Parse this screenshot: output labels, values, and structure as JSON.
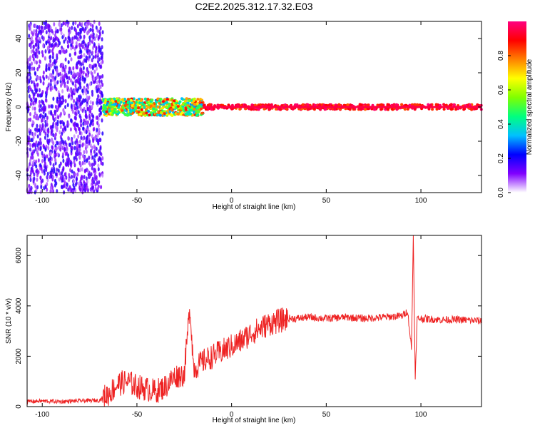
{
  "title": "C2E2.2025.312.17.32.E03",
  "chart_data": [
    {
      "type": "heatmap",
      "xlabel": "Height of straight line (km)",
      "ylabel": "Frequency (Hz)",
      "xlim": [
        -108,
        132
      ],
      "ylim": [
        -50,
        50
      ],
      "xticks": [
        -100,
        -50,
        0,
        50,
        100
      ],
      "yticks": [
        -40,
        -20,
        0,
        20,
        40
      ],
      "colorbar": {
        "label": "Normalized spectral amplitude",
        "range": [
          0,
          1
        ],
        "ticks": [
          "0.0",
          "0.2",
          "0.4",
          "0.6",
          "0.8"
        ],
        "colors": [
          "#ffffff",
          "#8000ff",
          "#0000ff",
          "#00c0ff",
          "#00ff80",
          "#80ff00",
          "#ffff00",
          "#ff8000",
          "#ff0000",
          "#ff0080"
        ]
      },
      "description_regions": [
        {
          "x": [
            -108,
            -68
          ],
          "freq_spread": 50,
          "amplitude": [
            0.05,
            0.2
          ]
        },
        {
          "x": [
            -68,
            -15
          ],
          "freq_spread": 5,
          "amplitude": [
            0.3,
            0.9
          ]
        },
        {
          "x": [
            -15,
            132
          ],
          "freq_spread": 1.5,
          "amplitude": [
            0.8,
            1.0
          ]
        }
      ]
    },
    {
      "type": "line",
      "xlabel": "Height of straight line (km)",
      "ylabel": "SNR (10 * v/v)",
      "xlim": [
        -108,
        132
      ],
      "ylim": [
        0,
        6800
      ],
      "xticks": [
        -100,
        -50,
        0,
        50,
        100
      ],
      "yticks": [
        0,
        2000,
        4000,
        6000
      ],
      "color": "#ee2222",
      "series": [
        {
          "x": [
            -108,
            -100,
            -90,
            -80,
            -70,
            -65,
            -60,
            -55,
            -50,
            -45,
            -40,
            -35,
            -30,
            -25,
            -22,
            -20,
            -15,
            -10,
            -5,
            0,
            5,
            10,
            15,
            20,
            25,
            30,
            35,
            40,
            50,
            60,
            70,
            80,
            90,
            93,
            95,
            96,
            97,
            98,
            100,
            110,
            120,
            132
          ],
          "values": [
            200,
            220,
            200,
            230,
            250,
            500,
            900,
            1000,
            800,
            700,
            600,
            800,
            1200,
            1300,
            4000,
            1500,
            1800,
            2000,
            2200,
            2400,
            2600,
            2900,
            3100,
            3300,
            3400,
            3500,
            3500,
            3550,
            3500,
            3550,
            3500,
            3550,
            3600,
            3800,
            2300,
            6800,
            1000,
            3500,
            3500,
            3450,
            3450,
            3400
          ]
        }
      ]
    }
  ]
}
